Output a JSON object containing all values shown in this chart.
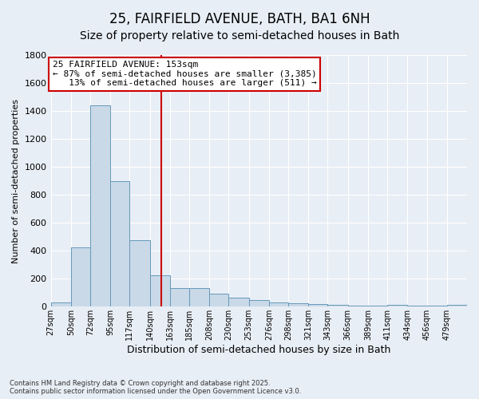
{
  "title": "25, FAIRFIELD AVENUE, BATH, BA1 6NH",
  "subtitle": "Size of property relative to semi-detached houses in Bath",
  "xlabel": "Distribution of semi-detached houses by size in Bath",
  "ylabel": "Number of semi-detached properties",
  "bar_edges": [
    27,
    50,
    72,
    95,
    117,
    140,
    163,
    185,
    208,
    230,
    253,
    276,
    298,
    321,
    343,
    366,
    389,
    411,
    434,
    456,
    479,
    502
  ],
  "bar_heights": [
    30,
    425,
    1440,
    900,
    475,
    225,
    135,
    135,
    95,
    65,
    50,
    30,
    25,
    20,
    15,
    10,
    10,
    15,
    10,
    10,
    15
  ],
  "bar_color": "#c9d9e8",
  "bar_edgecolor": "#6699bb",
  "vline_x": 153,
  "vline_color": "#cc0000",
  "annotation_line1": "25 FAIRFIELD AVENUE: 153sqm",
  "annotation_line2": "← 87% of semi-detached houses are smaller (3,385)",
  "annotation_line3": "13% of semi-detached houses are larger (511) →",
  "annotation_box_color": "#ffffff",
  "annotation_box_edgecolor": "#cc0000",
  "ylim": [
    0,
    1800
  ],
  "yticks": [
    0,
    200,
    400,
    600,
    800,
    1000,
    1200,
    1400,
    1600,
    1800
  ],
  "tick_labels": [
    "27sqm",
    "50sqm",
    "72sqm",
    "95sqm",
    "117sqm",
    "140sqm",
    "163sqm",
    "185sqm",
    "208sqm",
    "230sqm",
    "253sqm",
    "276sqm",
    "298sqm",
    "321sqm",
    "343sqm",
    "366sqm",
    "389sqm",
    "411sqm",
    "434sqm",
    "456sqm",
    "479sqm"
  ],
  "bg_color": "#e8eef5",
  "plot_bg_color": "#e8eef5",
  "footer": "Contains HM Land Registry data © Crown copyright and database right 2025.\nContains public sector information licensed under the Open Government Licence v3.0.",
  "title_fontsize": 12,
  "subtitle_fontsize": 10,
  "ylabel_fontsize": 8,
  "xlabel_fontsize": 9,
  "annotation_fontsize": 8,
  "tick_fontsize": 7,
  "ytick_fontsize": 8
}
